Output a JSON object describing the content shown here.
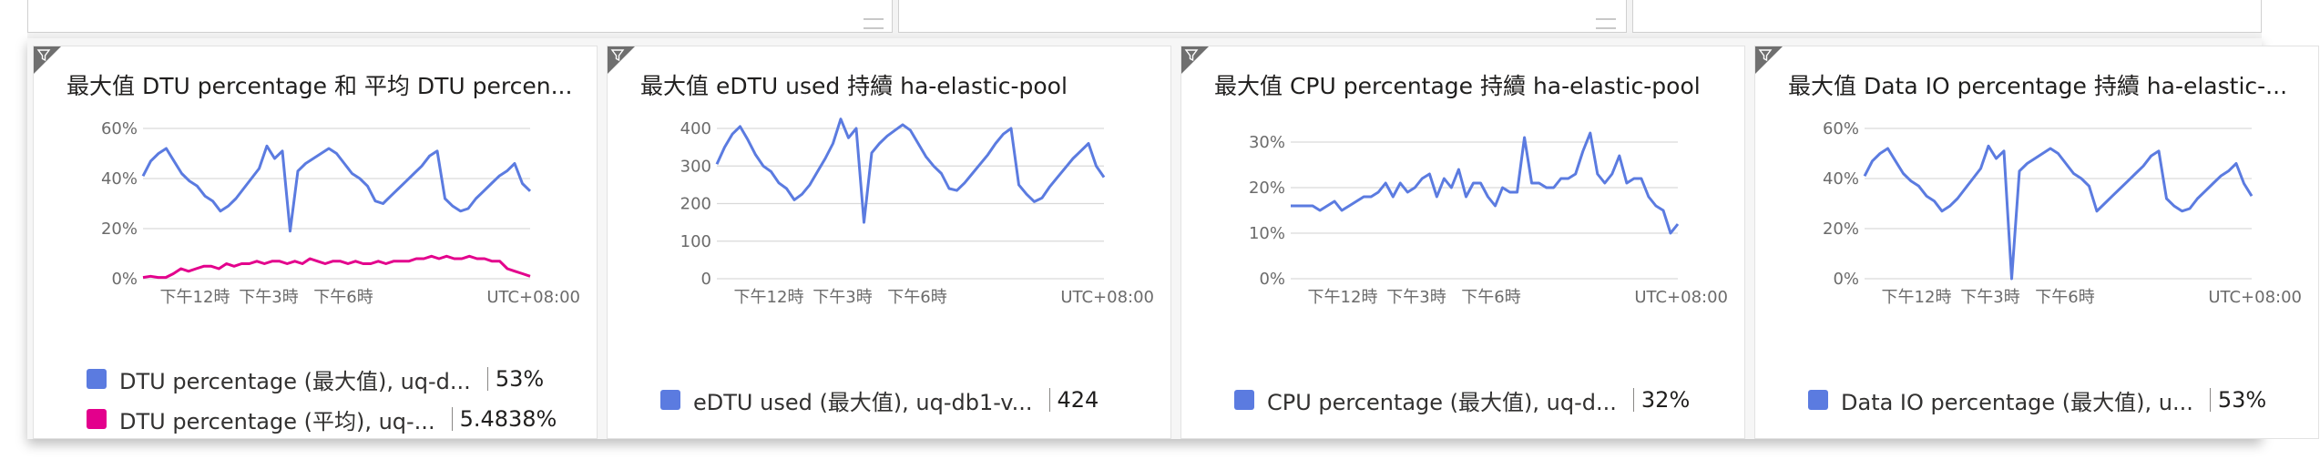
{
  "tiles": [
    {
      "title": "最大值 DTU percentage 和 平均 DTU percen...",
      "legend": [
        {
          "name": "DTU percentage (最大值), uq-d...",
          "value": "53%",
          "color": "#5b7be0"
        },
        {
          "name": "DTU percentage (平均), uq-...",
          "value": "5.4838%",
          "color": "#e3008c"
        }
      ]
    },
    {
      "title": "最大值 eDTU used 持續 ha-elastic-pool",
      "legend": [
        {
          "name": "eDTU used (最大值), uq-db1-v...",
          "value": "424",
          "color": "#5b7be0"
        }
      ]
    },
    {
      "title": "最大值 CPU percentage 持續 ha-elastic-pool",
      "legend": [
        {
          "name": "CPU percentage (最大值), uq-d...",
          "value": "32%",
          "color": "#5b7be0"
        }
      ]
    },
    {
      "title": "最大值 Data IO percentage 持續 ha-elastic-...",
      "legend": [
        {
          "name": "Data IO percentage (最大值), u...",
          "value": "53%",
          "color": "#5b7be0"
        }
      ]
    }
  ],
  "chart_data": [
    {
      "type": "line",
      "y_ticks": [
        "60%",
        "40%",
        "20%",
        "0%"
      ],
      "ylim": [
        0,
        60
      ],
      "x_ticks": [
        "下午12時",
        "下午3時",
        "下午6時"
      ],
      "timezone": "UTC+08:00",
      "series": [
        {
          "name": "DTU percentage (最大值), uq-d...",
          "color": "#5b7be0",
          "values": [
            41,
            47,
            50,
            52,
            47,
            42,
            39,
            37,
            33,
            31,
            27,
            29,
            32,
            36,
            40,
            44,
            53,
            48,
            51,
            19,
            43,
            46,
            48,
            50,
            52,
            50,
            46,
            42,
            40,
            37,
            31,
            30,
            33,
            36,
            39,
            42,
            45,
            49,
            51,
            32,
            29,
            27,
            28,
            32,
            35,
            38,
            41,
            43,
            46,
            38,
            35
          ]
        },
        {
          "name": "DTU percentage (平均), uq-...",
          "color": "#e3008c",
          "values": [
            0.5,
            1,
            0.5,
            0.5,
            2,
            4,
            3,
            4,
            5,
            5,
            4,
            6,
            5,
            6,
            6,
            7,
            6,
            7,
            7,
            6,
            7,
            6,
            8,
            7,
            6,
            7,
            7,
            6,
            7,
            6,
            6,
            7,
            6,
            7,
            7,
            7,
            8,
            8,
            9,
            8,
            9,
            8,
            8,
            9,
            8,
            8,
            7,
            7,
            4,
            3,
            2,
            1
          ]
        }
      ]
    },
    {
      "type": "line",
      "y_ticks": [
        "400",
        "300",
        "200",
        "100",
        "0"
      ],
      "ylim": [
        0,
        400
      ],
      "x_ticks": [
        "下午12時",
        "下午3時",
        "下午6時"
      ],
      "timezone": "UTC+08:00",
      "series": [
        {
          "name": "eDTU used (最大值), uq-db1-v...",
          "color": "#5b7be0",
          "values": [
            305,
            350,
            385,
            405,
            370,
            330,
            300,
            285,
            255,
            240,
            210,
            225,
            250,
            285,
            320,
            360,
            425,
            375,
            400,
            150,
            335,
            360,
            380,
            395,
            410,
            395,
            360,
            325,
            300,
            280,
            240,
            235,
            255,
            280,
            305,
            330,
            360,
            385,
            400,
            250,
            225,
            205,
            215,
            245,
            270,
            295,
            320,
            340,
            360,
            300,
            270
          ]
        }
      ]
    },
    {
      "type": "line",
      "y_ticks": [
        "30%",
        "20%",
        "10%",
        "0%"
      ],
      "ylim": [
        0,
        33
      ],
      "x_ticks": [
        "下午12時",
        "下午3時",
        "下午6時"
      ],
      "timezone": "UTC+08:00",
      "series": [
        {
          "name": "CPU percentage (最大值), uq-d...",
          "color": "#5b7be0",
          "values": [
            16,
            16,
            16,
            16,
            15,
            16,
            17,
            15,
            16,
            17,
            18,
            18,
            19,
            21,
            18,
            21,
            19,
            20,
            22,
            23,
            18,
            22,
            20,
            24,
            18,
            21,
            21,
            18,
            16,
            20,
            19,
            19,
            31,
            21,
            21,
            20,
            20,
            22,
            22,
            23,
            28,
            32,
            23,
            21,
            23,
            27,
            21,
            22,
            22,
            18,
            16,
            15,
            10,
            12
          ]
        }
      ]
    },
    {
      "type": "line",
      "y_ticks": [
        "60%",
        "40%",
        "20%",
        "0%"
      ],
      "ylim": [
        0,
        60
      ],
      "x_ticks": [
        "下午12時",
        "下午3時",
        "下午6時"
      ],
      "timezone": "UTC+08:00",
      "series": [
        {
          "name": "Data IO percentage (最大值), u...",
          "color": "#5b7be0",
          "values": [
            41,
            47,
            50,
            52,
            47,
            42,
            39,
            37,
            33,
            31,
            27,
            29,
            32,
            36,
            40,
            44,
            53,
            48,
            51,
            0,
            43,
            46,
            48,
            50,
            52,
            50,
            46,
            42,
            40,
            37,
            27,
            30,
            33,
            36,
            39,
            42,
            45,
            49,
            51,
            32,
            29,
            27,
            28,
            32,
            35,
            38,
            41,
            43,
            46,
            38,
            33
          ]
        }
      ]
    }
  ]
}
